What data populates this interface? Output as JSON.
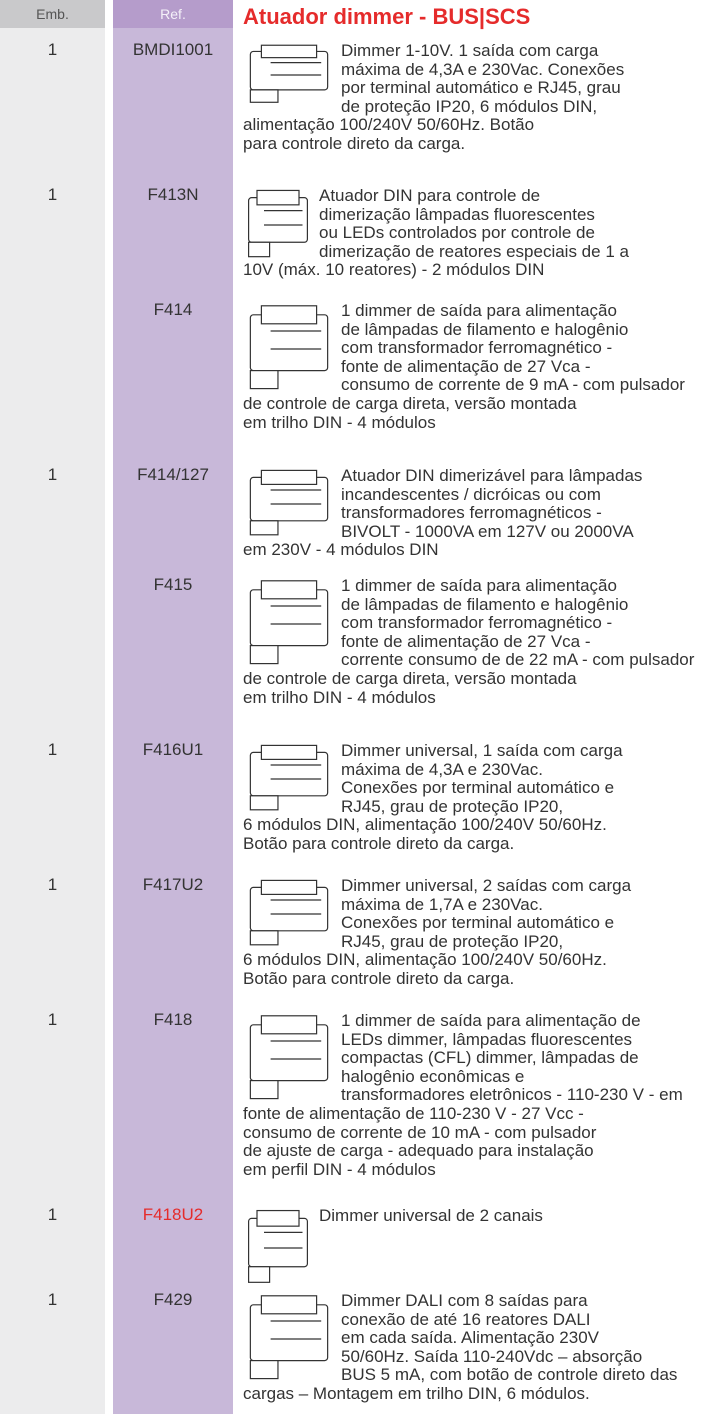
{
  "header": {
    "emb": "Emb.",
    "ref": "Ref.",
    "title": "Atuador dimmer - BUS|SCS"
  },
  "rows": [
    {
      "emb": "1",
      "ref": "BMDI1001",
      "lines": [
        "Dimmer 1-10V. 1 saída com carga",
        "máxima de 4,3A e 230Vac. Conexões",
        "por terminal automático e RJ45, grau",
        "de proteção IP20, 6 módulos DIN,",
        "alimentação 100/240V 50/60Hz. Botão",
        "para controle direto da carga."
      ]
    },
    {
      "emb": "1",
      "ref": "F413N",
      "lines": [
        "Atuador DIN para controle de",
        "dimerização lâmpadas fluorescentes",
        "ou LEDs controlados por controle de",
        "dimerização de reatores especiais de 1 a",
        "10V (máx. 10 reatores) - 2 módulos DIN"
      ]
    },
    {
      "emb": null,
      "ref": "F414",
      "lines": [
        "1 dimmer de saída para alimentação",
        "de lâmpadas de filamento e halogênio",
        "com transformador ferromagnético -",
        "fonte de alimentação de 27 Vca -",
        "consumo de corrente de 9 mA - com pulsador",
        "de controle de carga direta, versão montada",
        "em trilho DIN - 4 módulos"
      ]
    },
    {
      "emb": "1",
      "ref": "F414/127",
      "lines": [
        "Atuador DIN dimerizável para lâmpadas",
        "incandescentes / dicróicas ou com",
        "transformadores ferromagnéticos -",
        "BIVOLT - 1000VA em 127V ou 2000VA",
        "em 230V - 4 módulos DIN"
      ]
    },
    {
      "emb": null,
      "ref": "F415",
      "lines": [
        "1 dimmer de saída para alimentação",
        "de lâmpadas de filamento e halogênio",
        "com transformador ferromagnético -",
        "fonte de alimentação de 27 Vca -",
        "corrente consumo de de 22 mA - com pulsador",
        "de controle de carga direta, versão montada",
        "em trilho DIN - 4 módulos"
      ]
    },
    {
      "emb": "1",
      "ref": "F416U1",
      "lines": [
        "Dimmer universal, 1 saída com carga",
        "máxima de 4,3A e 230Vac.",
        "Conexões por terminal automático e",
        "RJ45, grau de proteção IP20,",
        "6 módulos DIN, alimentação 100/240V 50/60Hz.",
        "Botão para controle direto da carga."
      ]
    },
    {
      "emb": "1",
      "ref": "F417U2",
      "lines": [
        "Dimmer universal, 2 saídas com carga",
        "máxima de 1,7A e 230Vac.",
        "Conexões por terminal automático e",
        "RJ45, grau de proteção IP20,",
        "6 módulos DIN, alimentação 100/240V 50/60Hz.",
        "Botão para controle direto da carga."
      ]
    },
    {
      "emb": "1",
      "ref": "F418",
      "lines": [
        "1 dimmer de saída para alimentação de",
        "LEDs dimmer, lâmpadas fluorescentes",
        "compactas (CFL) dimmer, lâmpadas de",
        "halogênio econômicas e",
        "transformadores eletrônicos - 110-230 V - em",
        "fonte de alimentação de 110-230 V - 27 Vcc -",
        "consumo de corrente de 10 mA - com pulsador",
        "de ajuste de carga - adequado para instalação",
        "em perfil DIN - 4 módulos"
      ]
    },
    {
      "emb": "1",
      "ref": "F418U2",
      "lines": [
        "Dimmer universal de 2 canais"
      ]
    },
    {
      "emb": "1",
      "ref": "F429",
      "lines": [
        "Dimmer DALI com 8 saídas para",
        "conexão de até 16 reatores DALI",
        "em cada saída. Alimentação 230V",
        "50/60Hz. Saída 110-240Vdc – absorção",
        "BUS 5 mA, com botão de controle direto das",
        "cargas – Montagem em trilho DIN, 6 módulos."
      ]
    }
  ]
}
